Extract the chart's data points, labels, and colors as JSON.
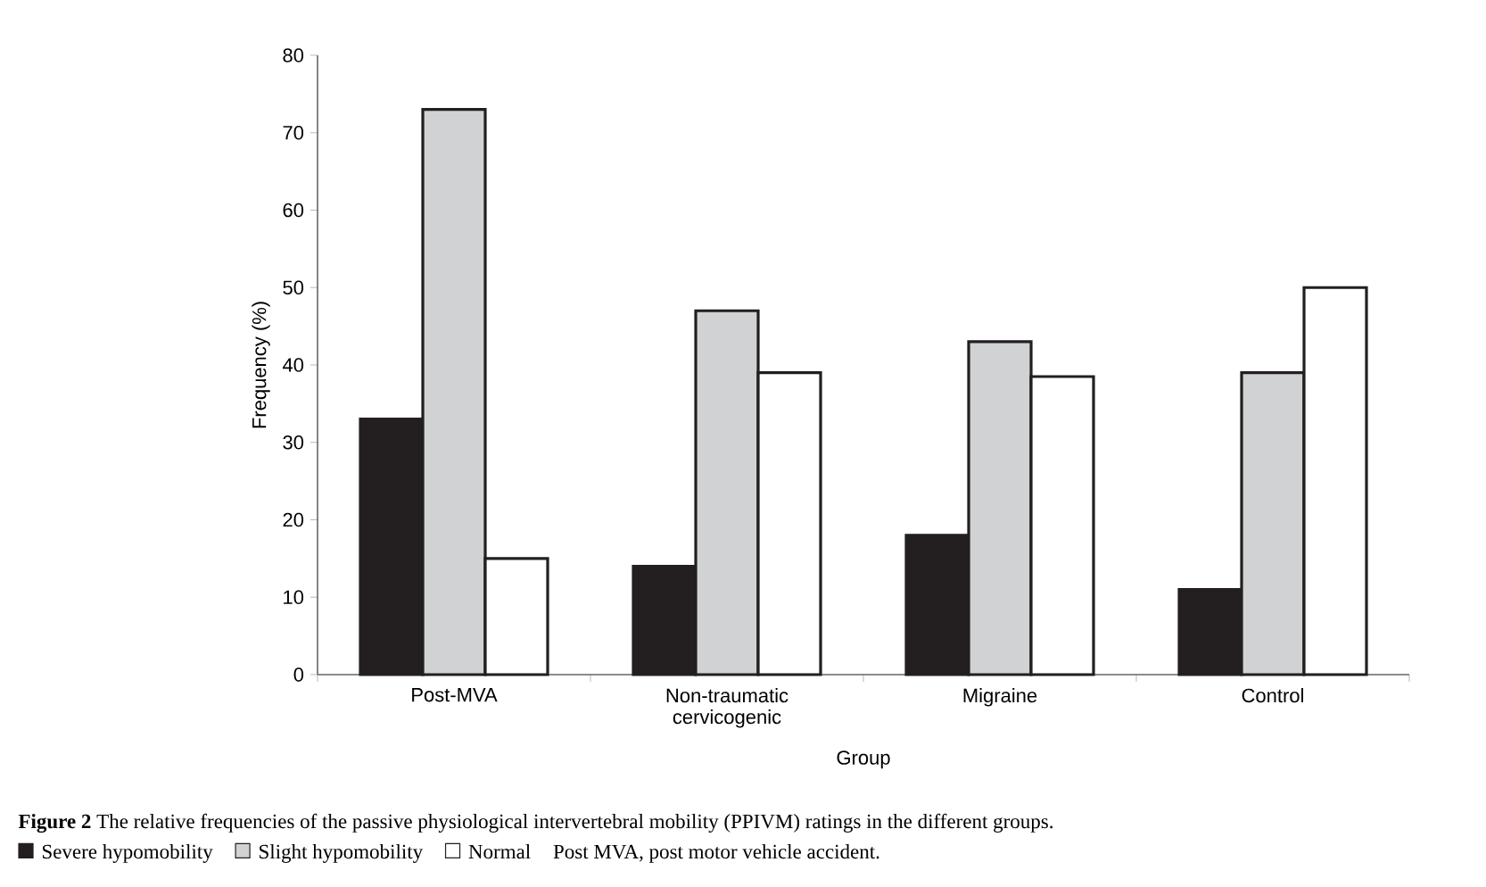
{
  "chart_data": {
    "type": "bar",
    "title": "**Figure 2** The relative frequencies of the passive physiological intervertebral mobility (PPIVM) ratings in the different groups.",
    "xlabel": "Group",
    "ylabel": "Frequency (%)",
    "categories": [
      "Post-MVA",
      "Non-traumatic cervicogenic",
      "Migraine",
      "Control"
    ],
    "series": [
      {
        "name": "Severe hypomobility",
        "color": "#231f20",
        "values": [
          33,
          14,
          18,
          11
        ]
      },
      {
        "name": "Slight hypomobility",
        "color": "#d1d2d4",
        "values": [
          73,
          47,
          43,
          39
        ]
      },
      {
        "name": "Normal",
        "color": "#ffffff",
        "values": [
          15,
          39,
          38.5,
          50
        ]
      }
    ],
    "ylim": [
      0,
      80
    ],
    "yticks": [
      0,
      10,
      20,
      30,
      40,
      50,
      60,
      70,
      80
    ],
    "legend": "bottom",
    "annotations": [
      "Post MVA, post motor vehicle accident."
    ]
  }
}
